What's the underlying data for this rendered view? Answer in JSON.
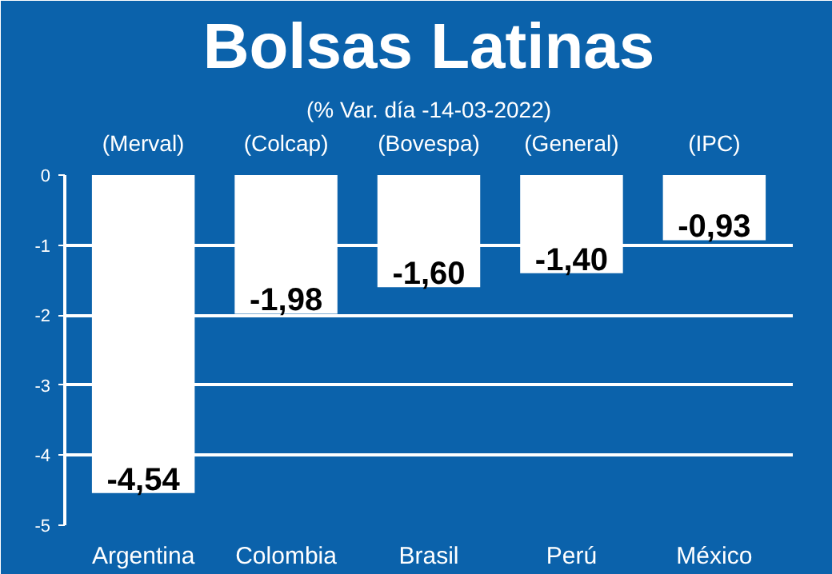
{
  "chart_data": {
    "type": "bar",
    "title": "Bolsas Latinas",
    "subtitle": "(% Var. día -14-03-2022)",
    "categories": [
      "Argentina",
      "Colombia",
      "Brasil",
      "Perú",
      "México"
    ],
    "values": [
      -4.54,
      -1.98,
      -1.6,
      -1.4,
      -0.93
    ],
    "value_labels": [
      "-4,54",
      "-1,98",
      "-1,60",
      "-1,40",
      "-0,93"
    ],
    "color": "#ffffff",
    "annotations": [
      "(Merval)",
      "(Colcap)",
      "(Bovespa)",
      "(General)",
      "(IPC)"
    ],
    "ylim": [
      -5,
      0
    ],
    "yticks": [
      0,
      -1,
      -2,
      -3,
      -4,
      -5
    ],
    "grid": "y"
  }
}
